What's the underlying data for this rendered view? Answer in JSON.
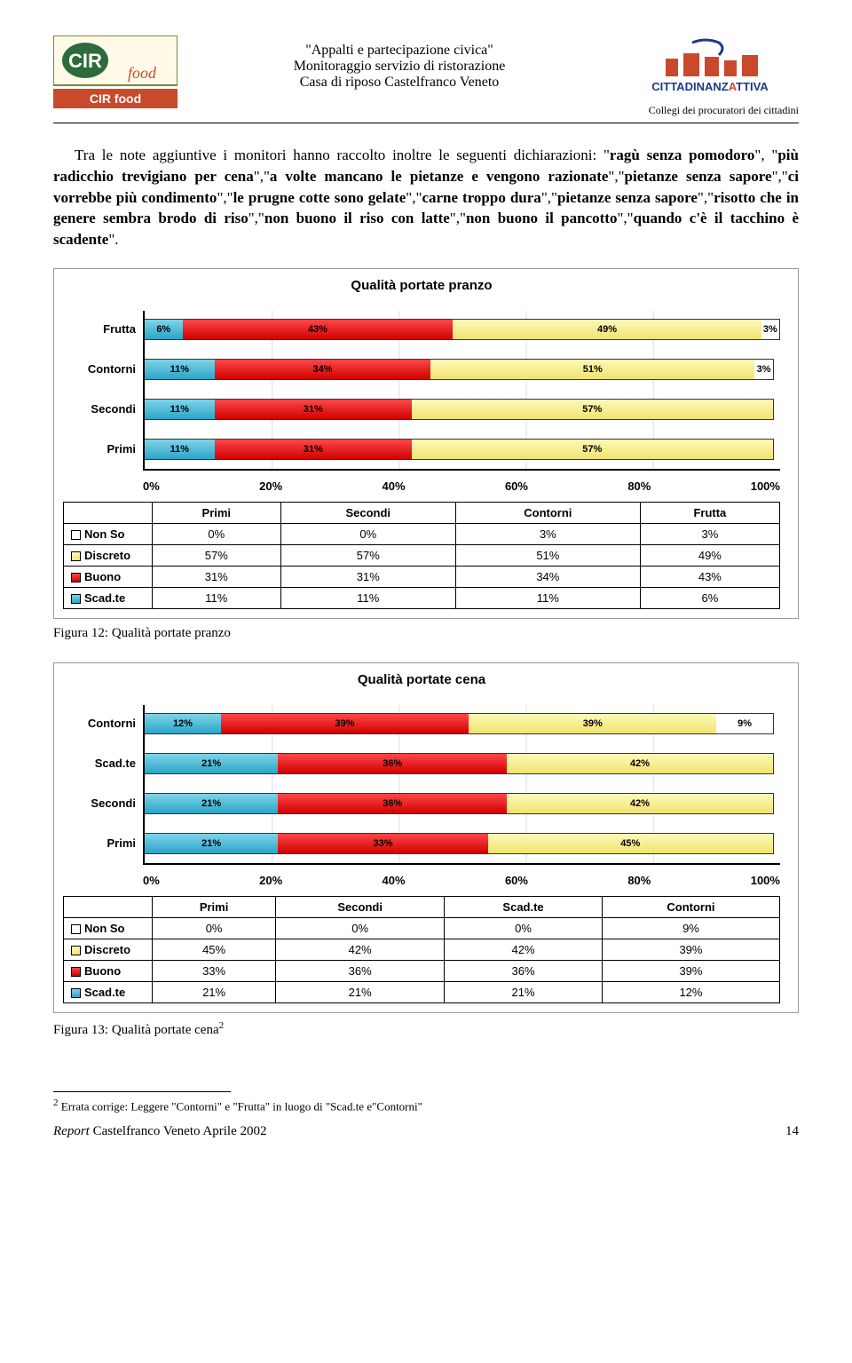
{
  "header": {
    "title_lines": [
      "\"Appalti e partecipazione civica\"",
      "Monitoraggio servizio di ristorazione",
      "Casa di riposo Castelfranco Veneto"
    ],
    "right_subtitle": "Collegi dei procuratori dei cittadini"
  },
  "body_paragraph": "Tra le note aggiuntive i monitori hanno raccolto inoltre le seguenti dichiarazioni: \"ragù senza pomodoro\", \"più radicchio trevigiano per cena\",\"a volte mancano le pietanze e vengono razionate\",\"pietanze senza sapore\",\"ci vorrebbe più condimento\",\"le prugne cotte sono gelate\",\"carne troppo dura\",\"pietanze senza sapore\",\"risotto che in genere sembra brodo di riso\",\"non buono il riso con latte\",\"non buono il pancotto\",\"quando c'è il tacchino è scadente\".",
  "chart1": {
    "title": "Qualità portate pranzo",
    "categories": [
      "Frutta",
      "Contorni",
      "Secondi",
      "Primi"
    ],
    "bars": [
      {
        "label": "Frutta",
        "segments": [
          {
            "cls": "c-scadte",
            "v": 6,
            "t": "6%"
          },
          {
            "cls": "c-buono",
            "v": 43,
            "t": "43%"
          },
          {
            "cls": "c-discreto",
            "v": 49,
            "t": "49%"
          },
          {
            "cls": "c-nonso",
            "v": 3,
            "t": "3%"
          }
        ]
      },
      {
        "label": "Contorni",
        "segments": [
          {
            "cls": "c-scadte",
            "v": 11,
            "t": "11%"
          },
          {
            "cls": "c-buono",
            "v": 34,
            "t": "34%"
          },
          {
            "cls": "c-discreto",
            "v": 51,
            "t": "51%"
          },
          {
            "cls": "c-nonso",
            "v": 3,
            "t": "3%"
          }
        ]
      },
      {
        "label": "Secondi",
        "segments": [
          {
            "cls": "c-scadte",
            "v": 11,
            "t": "11%"
          },
          {
            "cls": "c-buono",
            "v": 31,
            "t": "31%"
          },
          {
            "cls": "c-discreto",
            "v": 57,
            "t": "57%"
          }
        ]
      },
      {
        "label": "Primi",
        "segments": [
          {
            "cls": "c-scadte",
            "v": 11,
            "t": "11%"
          },
          {
            "cls": "c-buono",
            "v": 31,
            "t": "31%"
          },
          {
            "cls": "c-discreto",
            "v": 57,
            "t": "57%"
          }
        ]
      }
    ],
    "x_ticks": [
      "0%",
      "20%",
      "40%",
      "60%",
      "80%",
      "100%"
    ],
    "table": {
      "cols": [
        "",
        "Primi",
        "Secondi",
        "Contorni",
        "Frutta"
      ],
      "rows": [
        {
          "legend": "c-nonso",
          "label": "Non So",
          "vals": [
            "0%",
            "0%",
            "3%",
            "3%"
          ]
        },
        {
          "legend": "c-discreto",
          "label": "Discreto",
          "vals": [
            "57%",
            "57%",
            "51%",
            "49%"
          ]
        },
        {
          "legend": "c-buono",
          "label": "Buono",
          "vals": [
            "31%",
            "31%",
            "34%",
            "43%"
          ]
        },
        {
          "legend": "c-scadte",
          "label": "Scad.te",
          "vals": [
            "11%",
            "11%",
            "11%",
            "6%"
          ]
        }
      ]
    },
    "caption": "Figura 12: Qualità portate pranzo"
  },
  "chart2": {
    "title": "Qualità portate cena",
    "bars": [
      {
        "label": "Contorni",
        "segments": [
          {
            "cls": "c-scadte",
            "v": 12,
            "t": "12%"
          },
          {
            "cls": "c-buono",
            "v": 39,
            "t": "39%"
          },
          {
            "cls": "c-discreto",
            "v": 39,
            "t": "39%"
          },
          {
            "cls": "c-nonso",
            "v": 9,
            "t": "9%"
          }
        ]
      },
      {
        "label": "Scad.te",
        "segments": [
          {
            "cls": "c-scadte",
            "v": 21,
            "t": "21%"
          },
          {
            "cls": "c-buono",
            "v": 36,
            "t": "36%"
          },
          {
            "cls": "c-discreto",
            "v": 42,
            "t": "42%"
          }
        ]
      },
      {
        "label": "Secondi",
        "segments": [
          {
            "cls": "c-scadte",
            "v": 21,
            "t": "21%"
          },
          {
            "cls": "c-buono",
            "v": 36,
            "t": "36%"
          },
          {
            "cls": "c-discreto",
            "v": 42,
            "t": "42%"
          }
        ]
      },
      {
        "label": "Primi",
        "segments": [
          {
            "cls": "c-scadte",
            "v": 21,
            "t": "21%"
          },
          {
            "cls": "c-buono",
            "v": 33,
            "t": "33%"
          },
          {
            "cls": "c-discreto",
            "v": 45,
            "t": "45%"
          }
        ]
      }
    ],
    "x_ticks": [
      "0%",
      "20%",
      "40%",
      "60%",
      "80%",
      "100%"
    ],
    "table": {
      "cols": [
        "",
        "Primi",
        "Secondi",
        "Scad.te",
        "Contorni"
      ],
      "rows": [
        {
          "legend": "c-nonso",
          "label": "Non So",
          "vals": [
            "0%",
            "0%",
            "0%",
            "9%"
          ]
        },
        {
          "legend": "c-discreto",
          "label": "Discreto",
          "vals": [
            "45%",
            "42%",
            "42%",
            "39%"
          ]
        },
        {
          "legend": "c-buono",
          "label": "Buono",
          "vals": [
            "33%",
            "36%",
            "36%",
            "39%"
          ]
        },
        {
          "legend": "c-scadte",
          "label": "Scad.te",
          "vals": [
            "21%",
            "21%",
            "21%",
            "12%"
          ]
        }
      ]
    },
    "caption": "Figura 13: Qualità portate cena",
    "caption_sup": "2"
  },
  "footnote": {
    "num": "2",
    "text": " Errata corrige: Leggere \"Contorni\" e \"Frutta\" in luogo di \"Scad.te e\"Contorni\""
  },
  "footer": {
    "left_italic": "Report ",
    "left_rest": "Castelfranco Veneto Aprile 2002",
    "page": "14"
  }
}
